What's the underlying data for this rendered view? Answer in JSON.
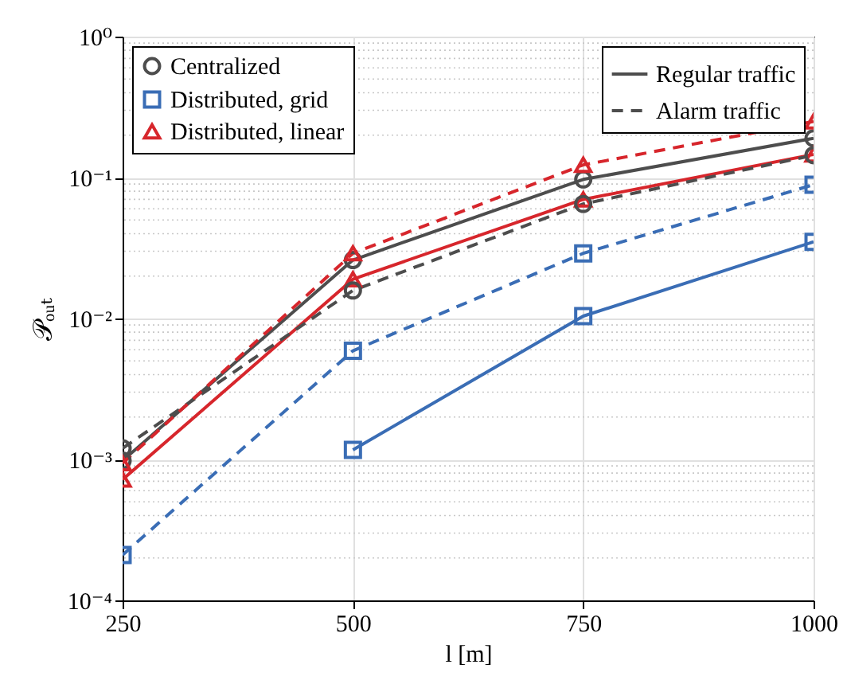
{
  "chart_data": {
    "type": "line",
    "xlabel": "l [m]",
    "ylabel": "𝒫ₒᵤₜ",
    "x": [
      250,
      500,
      750,
      1000
    ],
    "series": [
      {
        "name": "Centralized",
        "color": "#4d4d4d",
        "marker": "circle",
        "line_style": "solid",
        "values": [
          0.00098,
          0.026,
          0.097,
          0.19
        ]
      },
      {
        "name": "Distributed, grid",
        "color": "#3a6db5",
        "marker": "square",
        "line_style": "solid",
        "values": [
          null,
          0.00117,
          0.0104,
          0.035
        ]
      },
      {
        "name": "Distributed, linear",
        "color": "#d7262c",
        "marker": "triangle",
        "line_style": "solid",
        "values": [
          0.00072,
          0.019,
          0.07,
          0.146
        ]
      },
      {
        "color": "#4d4d4d",
        "marker": "circle",
        "line_style": "dashed",
        "values": [
          0.0012,
          0.0158,
          0.065,
          0.144
        ]
      },
      {
        "color": "#3a6db5",
        "marker": "square",
        "line_style": "dashed",
        "values": [
          0.00021,
          0.0059,
          0.029,
          0.089
        ]
      },
      {
        "color": "#d7262c",
        "marker": "triangle",
        "line_style": "dashed",
        "values": [
          0.00094,
          0.029,
          0.123,
          0.25
        ]
      }
    ],
    "annotations": [
      "Regular traffic",
      "Alarm traffic"
    ],
    "xlim": [
      250,
      1000
    ],
    "xticks": [
      250,
      500,
      750,
      1000
    ],
    "ylim": [
      0.0001,
      1
    ],
    "log": "y",
    "yticks": [
      {
        "value": 0.0001,
        "label": "10⁻⁴"
      },
      {
        "value": 0.001,
        "label": "10⁻³"
      },
      {
        "value": 0.01,
        "label": "10⁻²"
      },
      {
        "value": 0.1,
        "label": "10⁻¹"
      },
      {
        "value": 1,
        "label": "10⁰"
      }
    ],
    "grid": true,
    "legend": "top left"
  }
}
